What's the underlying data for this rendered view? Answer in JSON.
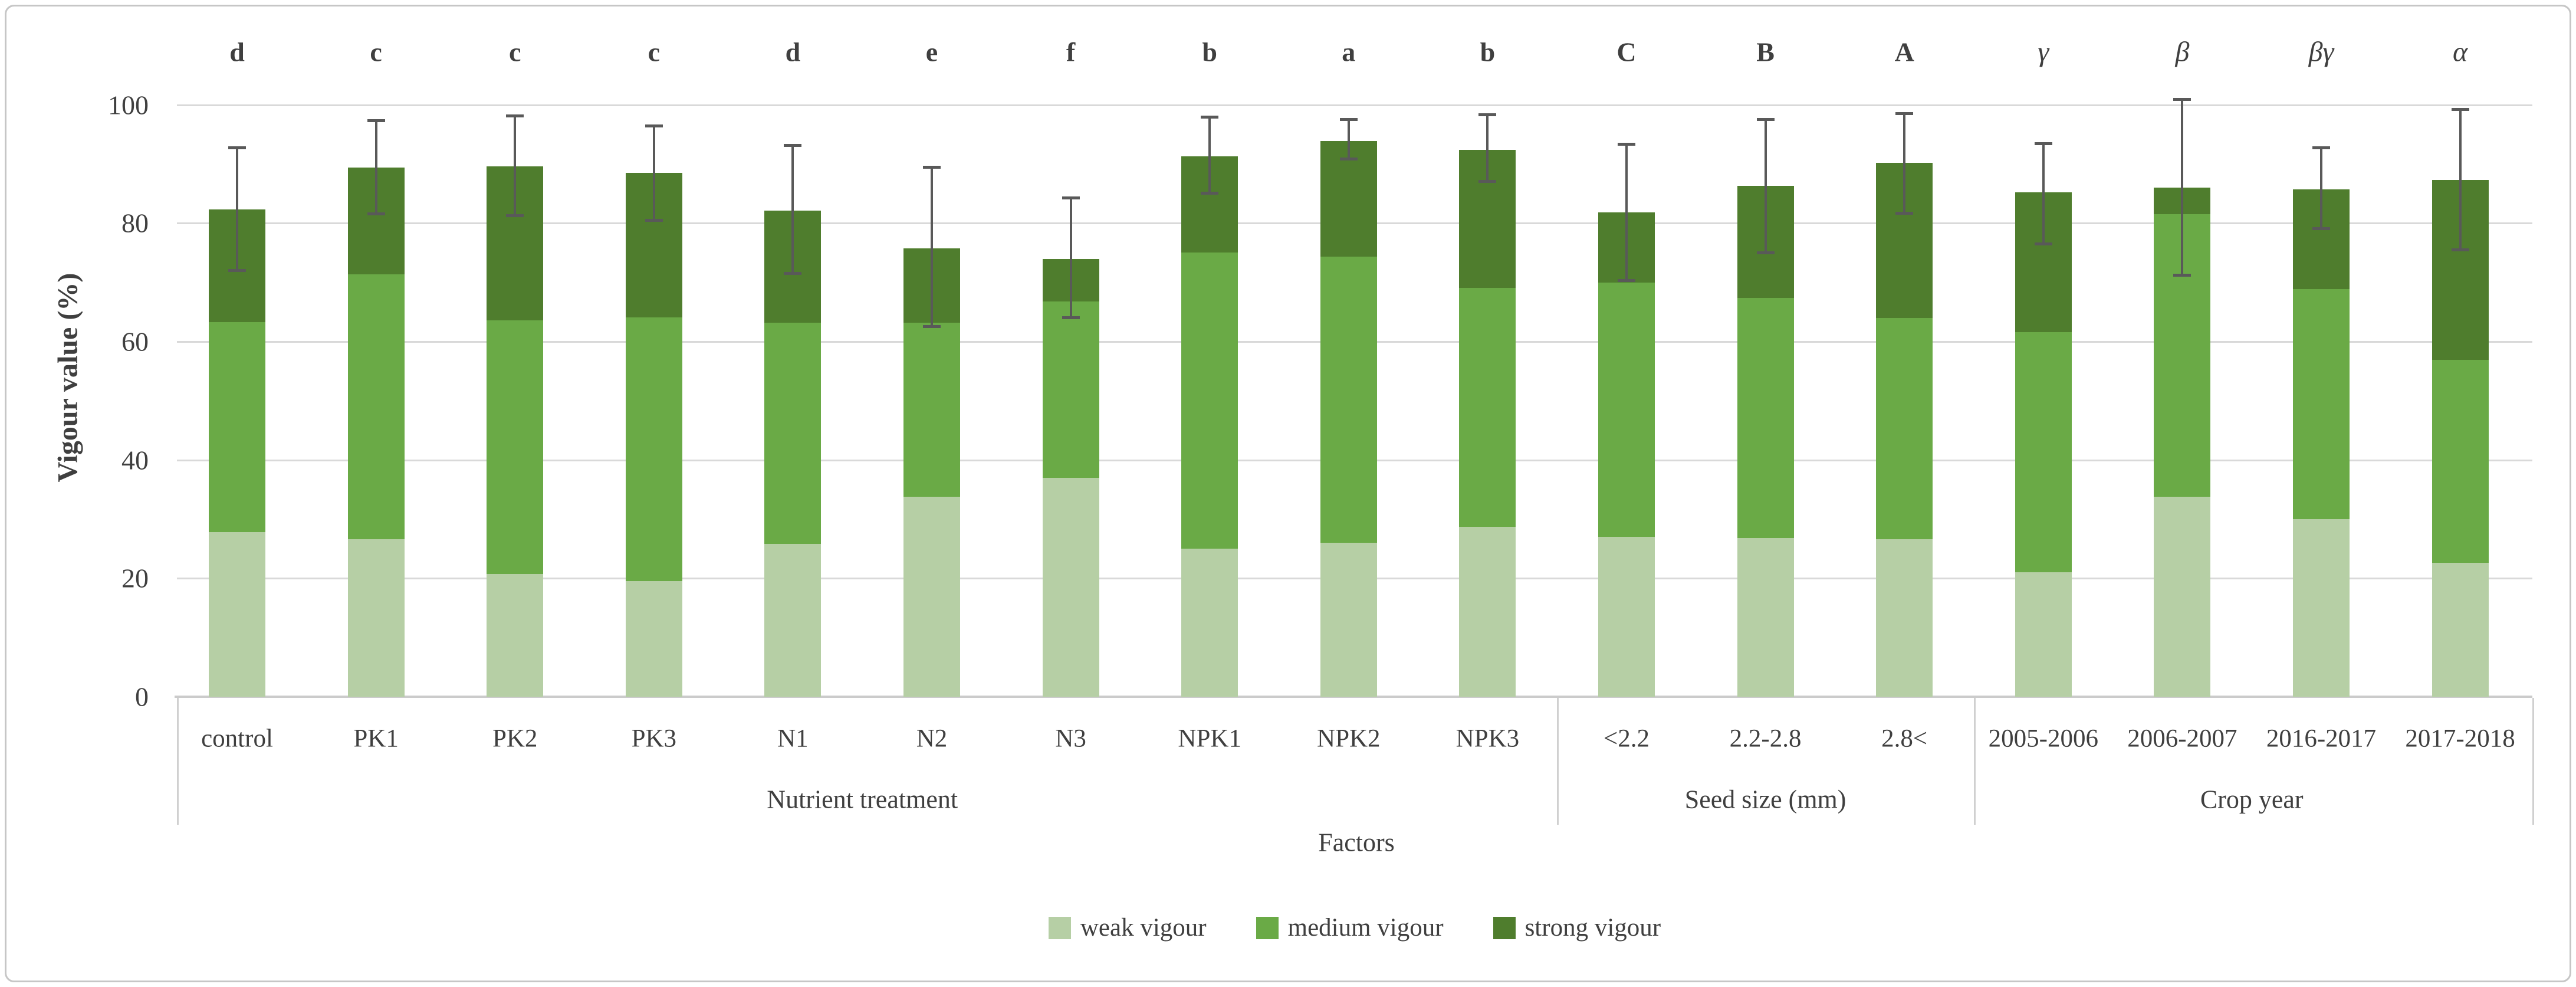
{
  "chart_data": {
    "type": "bar",
    "stacked": true,
    "title": "",
    "ylabel": "Vigour value (%)",
    "xlabel": "Factors",
    "ylim": [
      0,
      100
    ],
    "yticks": [
      0,
      20,
      40,
      60,
      80,
      100
    ],
    "grid": true,
    "legend_position": "bottom",
    "error_bar_color": "#595959",
    "gridline_color": "#d9d9d9",
    "text_color": "#3f3f3f",
    "series": [
      {
        "name": "weak vigour",
        "color": "#b6cfa5"
      },
      {
        "name": "medium vigour",
        "color": "#6aaa46"
      },
      {
        "name": "strong vigour",
        "color": "#4f7d2d"
      }
    ],
    "groups": [
      {
        "label": "Nutrient treatment",
        "categories": [
          "control",
          "PK1",
          "PK2",
          "PK3",
          "N1",
          "N2",
          "N3",
          "NPK1",
          "NPK2",
          "NPK3"
        ]
      },
      {
        "label": "Seed size (mm)",
        "categories": [
          "<2.2",
          "2.2-2.8",
          "2.8<"
        ]
      },
      {
        "label": "Crop year",
        "categories": [
          "2005-2006",
          "2006-2007",
          "2016-2017",
          "2017-2018"
        ]
      }
    ],
    "bars": [
      {
        "category": "control",
        "group": "Nutrient treatment",
        "letter": "d",
        "weak": 27.8,
        "medium": 35.5,
        "strong": 19.0,
        "total": 82.3,
        "err_low": 72.0,
        "err_high": 92.8
      },
      {
        "category": "PK1",
        "group": "Nutrient treatment",
        "letter": "c",
        "weak": 26.6,
        "medium": 44.8,
        "strong": 18.0,
        "total": 89.4,
        "err_low": 81.5,
        "err_high": 97.4
      },
      {
        "category": "PK2",
        "group": "Nutrient treatment",
        "letter": "c",
        "weak": 20.7,
        "medium": 42.9,
        "strong": 26.0,
        "total": 89.6,
        "err_low": 81.2,
        "err_high": 98.2
      },
      {
        "category": "PK3",
        "group": "Nutrient treatment",
        "letter": "c",
        "weak": 19.5,
        "medium": 44.6,
        "strong": 24.4,
        "total": 88.5,
        "err_low": 80.4,
        "err_high": 96.5
      },
      {
        "category": "N1",
        "group": "Nutrient treatment",
        "letter": "d",
        "weak": 25.8,
        "medium": 37.4,
        "strong": 18.9,
        "total": 82.1,
        "err_low": 71.5,
        "err_high": 93.2
      },
      {
        "category": "N2",
        "group": "Nutrient treatment",
        "letter": "e",
        "weak": 33.8,
        "medium": 29.4,
        "strong": 12.6,
        "total": 75.8,
        "err_low": 62.5,
        "err_high": 89.5
      },
      {
        "category": "N3",
        "group": "Nutrient treatment",
        "letter": "f",
        "weak": 37.0,
        "medium": 29.8,
        "strong": 7.2,
        "total": 74.0,
        "err_low": 64.0,
        "err_high": 84.3
      },
      {
        "category": "NPK1",
        "group": "Nutrient treatment",
        "letter": "b",
        "weak": 25.0,
        "medium": 50.1,
        "strong": 16.2,
        "total": 91.3,
        "err_low": 85.0,
        "err_high": 98.0
      },
      {
        "category": "NPK2",
        "group": "Nutrient treatment",
        "letter": "a",
        "weak": 26.0,
        "medium": 48.4,
        "strong": 19.5,
        "total": 93.9,
        "err_low": 90.8,
        "err_high": 97.6
      },
      {
        "category": "NPK3",
        "group": "Nutrient treatment",
        "letter": "b",
        "weak": 28.7,
        "medium": 40.4,
        "strong": 23.3,
        "total": 92.4,
        "err_low": 87.0,
        "err_high": 98.4
      },
      {
        "category": "<2.2",
        "group": "Seed size (mm)",
        "letter": "C",
        "weak": 27.0,
        "medium": 43.0,
        "strong": 11.8,
        "total": 81.8,
        "err_low": 70.3,
        "err_high": 93.4
      },
      {
        "category": "2.2-2.8",
        "group": "Seed size (mm)",
        "letter": "B",
        "weak": 26.8,
        "medium": 40.6,
        "strong": 18.9,
        "total": 86.3,
        "err_low": 75.0,
        "err_high": 97.6
      },
      {
        "category": "2.8<",
        "group": "Seed size (mm)",
        "letter": "A",
        "weak": 26.6,
        "medium": 37.4,
        "strong": 26.2,
        "total": 90.2,
        "err_low": 81.6,
        "err_high": 98.6
      },
      {
        "category": "2005-2006",
        "group": "Crop year",
        "letter": "γ",
        "weak": 21.0,
        "medium": 40.6,
        "strong": 23.6,
        "total": 85.2,
        "err_low": 76.5,
        "err_high": 93.5
      },
      {
        "category": "2006-2007",
        "group": "Crop year",
        "letter": "β",
        "weak": 33.8,
        "medium": 47.7,
        "strong": 4.5,
        "total": 86.0,
        "err_low": 71.2,
        "err_high": 101.0
      },
      {
        "category": "2016-2017",
        "group": "Crop year",
        "letter": "βγ",
        "weak": 30.0,
        "medium": 38.9,
        "strong": 16.8,
        "total": 85.7,
        "err_low": 79.0,
        "err_high": 92.8
      },
      {
        "category": "2017-2018",
        "group": "Crop year",
        "letter": "α",
        "weak": 22.6,
        "medium": 34.3,
        "strong": 30.4,
        "total": 87.3,
        "err_low": 75.5,
        "err_high": 99.3
      }
    ]
  }
}
